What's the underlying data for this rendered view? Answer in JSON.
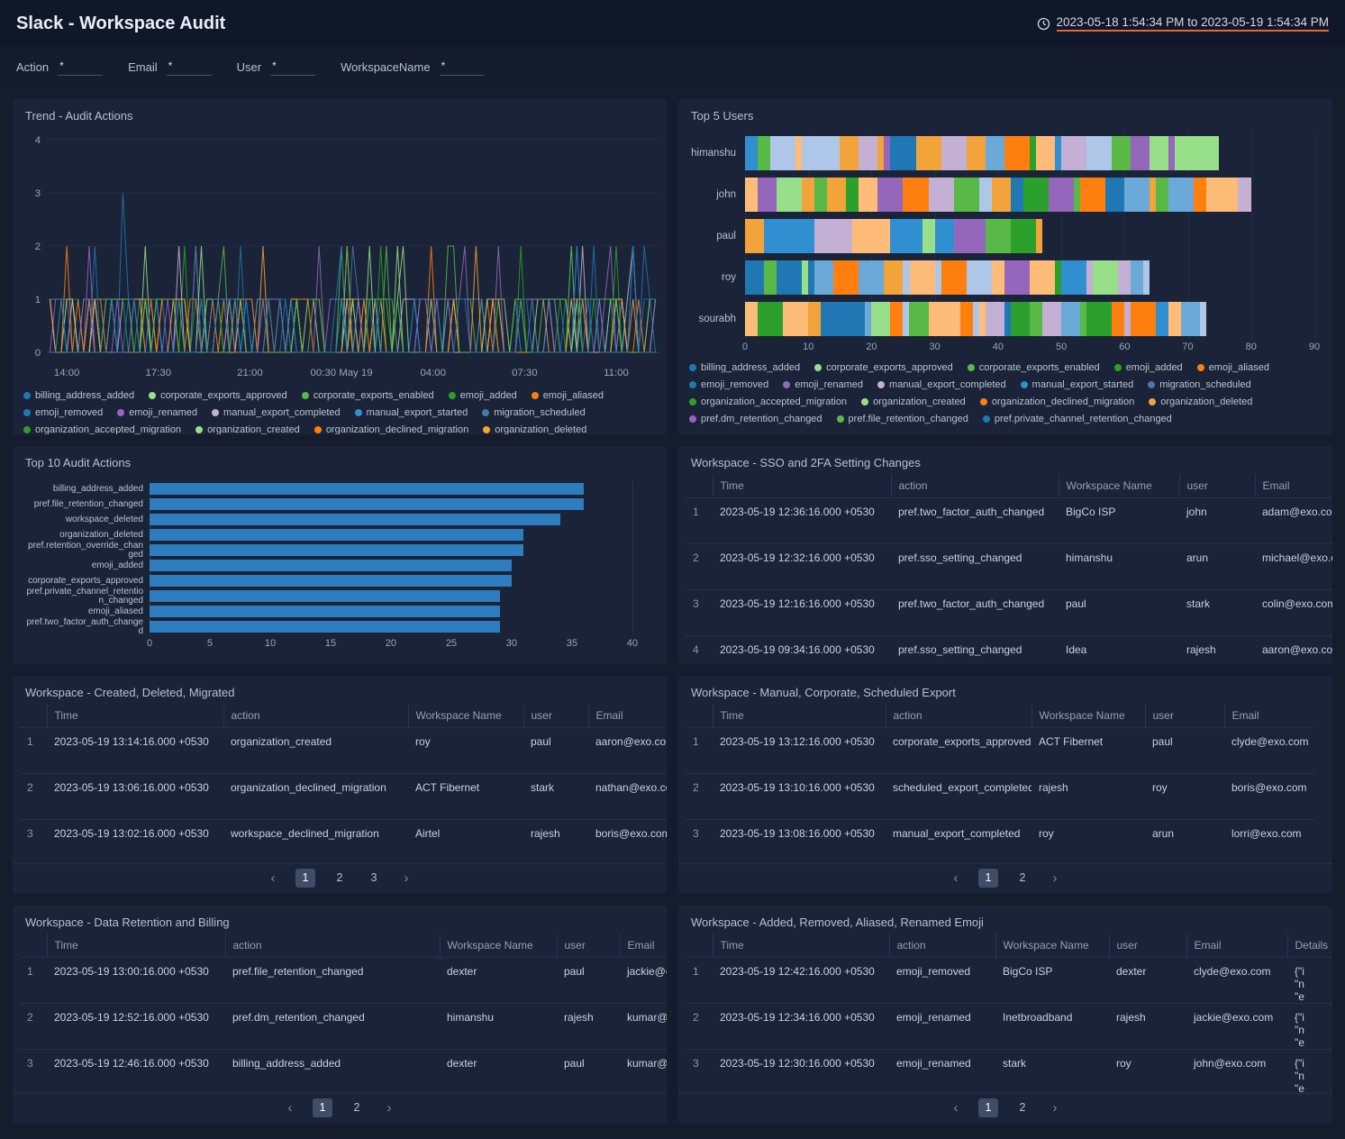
{
  "header": {
    "title": "Slack - Workspace Audit",
    "time_range": "2023-05-18 1:54:34 PM to 2023-05-19 1:54:34 PM"
  },
  "filters": [
    {
      "label": "Action",
      "value": "*"
    },
    {
      "label": "Email",
      "value": "*"
    },
    {
      "label": "User",
      "value": "*"
    },
    {
      "label": "WorkspaceName",
      "value": "*"
    }
  ],
  "legend": [
    {
      "label": "billing_address_added",
      "color": "#1f77b4"
    },
    {
      "label": "corporate_exports_approved",
      "color": "#98df8a"
    },
    {
      "label": "corporate_exports_enabled",
      "color": "#58b947"
    },
    {
      "label": "emoji_added",
      "color": "#2ca02c"
    },
    {
      "label": "emoji_aliased",
      "color": "#ff7f0e"
    },
    {
      "label": "emoji_removed",
      "color": "#1f77b4"
    },
    {
      "label": "emoji_renamed",
      "color": "#9467bd"
    },
    {
      "label": "manual_export_completed",
      "color": "#c5b0d5"
    },
    {
      "label": "manual_export_started",
      "color": "#2f8fd0"
    },
    {
      "label": "migration_scheduled",
      "color": "#4878a8"
    },
    {
      "label": "organization_accepted_migration",
      "color": "#2ca02c"
    },
    {
      "label": "organization_created",
      "color": "#98df8a"
    },
    {
      "label": "organization_declined_migration",
      "color": "#ff7f0e"
    },
    {
      "label": "organization_deleted",
      "color": "#f2a33a"
    },
    {
      "label": "pref.dm_retention_changed",
      "color": "#9467bd"
    },
    {
      "label": "pref.file_retention_changed",
      "color": "#58b947"
    },
    {
      "label": "pref.private_channel_retention_changed",
      "color": "#1f77b4"
    }
  ],
  "stack_palette": [
    "#1f77b4",
    "#aec7e8",
    "#ff7f0e",
    "#ffbb78",
    "#2ca02c",
    "#98df8a",
    "#9467bd",
    "#c5b0d5",
    "#2f8fd0",
    "#f2a33a",
    "#58b947",
    "#6aa9d8"
  ],
  "chart_data": [
    {
      "id": "trend_audit_actions",
      "type": "line",
      "title": "Trend - Audit Actions",
      "ylim": [
        0,
        4
      ],
      "yticks": [
        0,
        1,
        2,
        3,
        4
      ],
      "xticks": [
        "14:00",
        "17:30",
        "21:00",
        "00:30 May 19",
        "04:00",
        "07:30",
        "11:00"
      ],
      "series": [
        "billing_address_added",
        "corporate_exports_approved",
        "corporate_exports_enabled",
        "emoji_added",
        "emoji_aliased",
        "emoji_removed",
        "emoji_renamed",
        "manual_export_completed",
        "manual_export_started",
        "migration_scheduled",
        "organization_accepted_migration",
        "organization_created",
        "organization_declined_migration",
        "organization_deleted",
        "pref.dm_retention_changed",
        "pref.file_retention_changed",
        "pref.private_channel_retention_changed"
      ],
      "note": "Dense overlapping per-action event-count spikes mostly between 0 and 2; single maximum spike of 3 near 15:00"
    },
    {
      "id": "top5_users",
      "type": "bar-stacked-horizontal",
      "title": "Top 5 Users",
      "categories": [
        "himanshu",
        "john",
        "paul",
        "roy",
        "sourabh"
      ],
      "totals": [
        75,
        80,
        47,
        64,
        73
      ],
      "xlim": [
        0,
        90
      ],
      "xticks": [
        0,
        10,
        20,
        30,
        40,
        50,
        60,
        70,
        80,
        90
      ],
      "note": "Each bar is stacked by audit action type using the shared legend palette"
    },
    {
      "id": "top10_audit_actions",
      "type": "bar",
      "title": "Top 10 Audit Actions",
      "categories": [
        "billing_address_added",
        "pref.file_retention_changed",
        "workspace_deleted",
        "organization_deleted",
        "pref.retention_override_changed",
        "emoji_added",
        "corporate_exports_approved",
        "pref.private_channel_retention_changed",
        "emoji_aliased",
        "pref.two_factor_auth_changed"
      ],
      "values": [
        36,
        36,
        34,
        31,
        31,
        30,
        30,
        29,
        29,
        29
      ],
      "xlim": [
        0,
        40
      ],
      "xticks": [
        0,
        5,
        10,
        15,
        20,
        25,
        30,
        35,
        40
      ],
      "bar_color": "#2e7dbe"
    }
  ],
  "tables": {
    "sso": {
      "title": "Workspace - SSO and 2FA Setting Changes",
      "columns": [
        "Time",
        "action",
        "Workspace Name",
        "user",
        "Email"
      ],
      "rows": [
        [
          "1",
          "2023-05-19 12:36:16.000 +0530",
          "pref.two_factor_auth_changed",
          "BigCo ISP",
          "john",
          "adam@exo.com"
        ],
        [
          "2",
          "2023-05-19 12:32:16.000 +0530",
          "pref.sso_setting_changed",
          "himanshu",
          "arun",
          "michael@exo.com"
        ],
        [
          "3",
          "2023-05-19 12:16:16.000 +0530",
          "pref.two_factor_auth_changed",
          "paul",
          "stark",
          "colin@exo.com"
        ],
        [
          "4",
          "2023-05-19 09:34:16.000 +0530",
          "pref.sso_setting_changed",
          "Idea",
          "rajesh",
          "aaron@exo.com"
        ]
      ]
    },
    "created": {
      "title": "Workspace - Created, Deleted, Migrated",
      "columns": [
        "Time",
        "action",
        "Workspace Name",
        "user",
        "Email"
      ],
      "rows": [
        [
          "1",
          "2023-05-19 13:14:16.000 +0530",
          "organization_created",
          "roy",
          "paul",
          "aaron@exo.com"
        ],
        [
          "2",
          "2023-05-19 13:06:16.000 +0530",
          "organization_declined_migration",
          "ACT Fibernet",
          "stark",
          "nathan@exo.com"
        ],
        [
          "3",
          "2023-05-19 13:02:16.000 +0530",
          "workspace_declined_migration",
          "Airtel",
          "rajesh",
          "boris@exo.com"
        ]
      ],
      "pagination": {
        "pages": [
          "1",
          "2",
          "3"
        ],
        "active": "1"
      }
    },
    "export": {
      "title": "Workspace - Manual, Corporate, Scheduled Export",
      "columns": [
        "Time",
        "action",
        "Workspace Name",
        "user",
        "Email"
      ],
      "rows": [
        [
          "1",
          "2023-05-19 13:12:16.000 +0530",
          "corporate_exports_approved",
          "ACT Fibernet",
          "paul",
          "clyde@exo.com"
        ],
        [
          "2",
          "2023-05-19 13:10:16.000 +0530",
          "scheduled_export_completed",
          "rajesh",
          "roy",
          "boris@exo.com"
        ],
        [
          "3",
          "2023-05-19 13:08:16.000 +0530",
          "manual_export_completed",
          "roy",
          "arun",
          "lorri@exo.com"
        ]
      ],
      "pagination": {
        "pages": [
          "1",
          "2"
        ],
        "active": "1"
      }
    },
    "retention": {
      "title": "Workspace - Data Retention and Billing",
      "columns": [
        "Time",
        "action",
        "Workspace Name",
        "user",
        "Email"
      ],
      "rows": [
        [
          "1",
          "2023-05-19 13:00:16.000 +0530",
          "pref.file_retention_changed",
          "dexter",
          "paul",
          "jackie@exo.com"
        ],
        [
          "2",
          "2023-05-19 12:52:16.000 +0530",
          "pref.dm_retention_changed",
          "himanshu",
          "rajesh",
          "kumar@exo.com"
        ],
        [
          "3",
          "2023-05-19 12:46:16.000 +0530",
          "billing_address_added",
          "dexter",
          "paul",
          "kumar@exo.com"
        ]
      ],
      "pagination": {
        "pages": [
          "1",
          "2"
        ],
        "active": "1"
      }
    },
    "emoji": {
      "title": "Workspace - Added, Removed, Aliased, Renamed Emoji",
      "columns": [
        "Time",
        "action",
        "Workspace Name",
        "user",
        "Email",
        "Details"
      ],
      "rows": [
        [
          "1",
          "2023-05-19 12:42:16.000 +0530",
          "emoji_removed",
          "BigCo ISP",
          "dexter",
          "clyde@exo.com",
          "{\"i\n\"n\n\"e"
        ],
        [
          "2",
          "2023-05-19 12:34:16.000 +0530",
          "emoji_renamed",
          "Inetbroadband",
          "rajesh",
          "jackie@exo.com",
          "{\"i\n\"n\n\"e"
        ],
        [
          "3",
          "2023-05-19 12:30:16.000 +0530",
          "emoji_renamed",
          "stark",
          "roy",
          "john@exo.com",
          "{\"i\n\"n\n\"e"
        ]
      ],
      "pagination": {
        "pages": [
          "1",
          "2"
        ],
        "active": "1"
      }
    }
  }
}
